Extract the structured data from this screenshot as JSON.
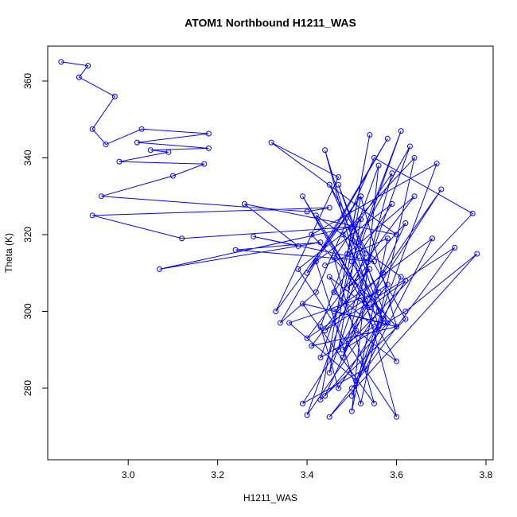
{
  "chart_data": {
    "type": "line",
    "markers": true,
    "title": "ATOM1 Northbound H1211_WAS",
    "xlabel": "H1211_WAS",
    "ylabel": "Theta (K)",
    "color": "#0000ff",
    "xlim": [
      2.82,
      3.816
    ],
    "ylim": [
      261.35,
      369.1
    ],
    "xticks": [
      {
        "value": 3,
        "label": "3.0"
      },
      3.2,
      3.4,
      3.6,
      3.8
    ],
    "yticks": [
      280,
      300,
      320,
      340,
      360
    ],
    "x": [
      2.85,
      2.91,
      2.89,
      2.97,
      2.92,
      2.95,
      3.03,
      3.18,
      3.02,
      3.18,
      3.05,
      3.09,
      2.98,
      3.17,
      3.1,
      2.94,
      3.4,
      3.45,
      2.92,
      3.12,
      3.5,
      3.07,
      3.43,
      3.24,
      3.55,
      3.28,
      3.38,
      3.26,
      3.6,
      3.32,
      3.47,
      3.33,
      3.52,
      3.4,
      3.58,
      3.34,
      3.42,
      3.55,
      3.77,
      3.48,
      3.62,
      3.78,
      3.45,
      3.5,
      3.73,
      3.44,
      3.57,
      3.7,
      3.39,
      3.53,
      3.68,
      3.46,
      3.6,
      3.41,
      3.69,
      3.51,
      3.36,
      3.56,
      3.45,
      3.62,
      3.43,
      3.54,
      3.49,
      3.64,
      3.4,
      3.58,
      3.47,
      3.52,
      3.38,
      3.6,
      3.44,
      3.56,
      3.5,
      3.61,
      3.42,
      3.53,
      3.48,
      3.59,
      3.46,
      3.55,
      3.39,
      3.57,
      3.51,
      3.63,
      3.45,
      3.52,
      3.6,
      3.41,
      3.54,
      3.49,
      3.62,
      3.44,
      3.58,
      3.47,
      3.53,
      3.4,
      3.56,
      3.5,
      3.61,
      3.43,
      3.55,
      3.46,
      3.59,
      3.42,
      3.52,
      3.64,
      3.48,
      3.57,
      3.45,
      3.51,
      3.6,
      3.39,
      3.54,
      3.62,
      3.47,
      3.43,
      3.56,
      3.5,
      3.58,
      3.44
    ],
    "y": [
      365,
      364,
      361,
      356,
      347.5,
      343.5,
      347.5,
      346.3,
      344,
      342.5,
      342,
      341.5,
      339,
      338.4,
      335.3,
      330,
      326,
      327,
      325,
      319,
      322,
      311,
      318,
      316,
      313,
      319.5,
      317,
      328,
      320,
      344,
      335,
      300,
      330,
      310,
      345,
      297,
      305,
      340,
      325.5,
      290,
      300,
      315,
      272.5,
      280,
      316.6,
      295,
      310,
      331.8,
      276,
      285,
      319,
      300,
      296,
      320,
      338.5,
      282,
      297,
      305,
      333,
      298,
      277,
      346,
      315,
      330,
      293,
      307,
      290,
      324,
      311,
      272.5,
      342,
      296,
      278,
      309,
      325,
      303,
      288,
      336,
      314,
      276,
      302,
      297,
      318,
      343,
      284,
      330,
      296,
      291,
      311,
      306,
      323,
      278,
      297,
      333,
      315,
      273,
      300,
      313,
      347,
      288,
      296,
      305,
      328,
      313,
      276,
      340,
      320,
      298,
      309,
      295,
      287,
      330,
      301,
      308,
      280,
      296,
      338,
      274,
      319,
      312
    ]
  }
}
